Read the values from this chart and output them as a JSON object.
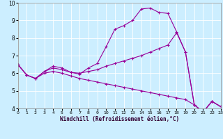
{
  "xlabel": "Windchill (Refroidissement éolien,°C)",
  "xlim": [
    0,
    23
  ],
  "ylim": [
    4,
    10
  ],
  "yticks": [
    4,
    5,
    6,
    7,
    8,
    9,
    10
  ],
  "xticks": [
    0,
    1,
    2,
    3,
    4,
    5,
    6,
    7,
    8,
    9,
    10,
    11,
    12,
    13,
    14,
    15,
    16,
    17,
    18,
    19,
    20,
    21,
    22,
    23
  ],
  "bg_color": "#cceeff",
  "line_color": "#990099",
  "grid_color": "#ffffff",
  "series": [
    {
      "x": [
        0,
        1,
        2,
        3,
        4,
        5,
        6,
        7,
        8,
        9,
        10,
        11,
        12,
        13,
        14,
        15,
        16,
        17,
        18,
        19,
        20,
        21,
        22,
        23
      ],
      "y": [
        6.5,
        5.9,
        5.7,
        6.1,
        6.4,
        6.3,
        6.05,
        5.95,
        6.3,
        6.55,
        7.5,
        8.5,
        8.7,
        9.0,
        9.65,
        9.7,
        9.45,
        9.4,
        8.35,
        7.2,
        4.2,
        3.8,
        4.4,
        4.1
      ]
    },
    {
      "x": [
        0,
        1,
        2,
        3,
        4,
        5,
        6,
        7,
        8,
        9,
        10,
        11,
        12,
        13,
        14,
        15,
        16,
        17,
        18,
        19,
        20,
        21,
        22,
        23
      ],
      "y": [
        6.5,
        5.9,
        5.7,
        6.1,
        6.3,
        6.2,
        6.05,
        6.0,
        6.1,
        6.2,
        6.4,
        6.55,
        6.7,
        6.85,
        7.0,
        7.2,
        7.4,
        7.6,
        8.3,
        7.2,
        4.2,
        3.8,
        4.4,
        4.1
      ]
    },
    {
      "x": [
        0,
        1,
        2,
        3,
        4,
        5,
        6,
        7,
        8,
        9,
        10,
        11,
        12,
        13,
        14,
        15,
        16,
        17,
        18,
        19,
        20,
        21,
        22,
        23
      ],
      "y": [
        6.5,
        5.9,
        5.7,
        6.0,
        6.1,
        6.0,
        5.85,
        5.7,
        5.6,
        5.5,
        5.4,
        5.3,
        5.2,
        5.1,
        5.0,
        4.9,
        4.8,
        4.7,
        4.6,
        4.5,
        4.2,
        3.8,
        4.4,
        4.1
      ]
    }
  ]
}
